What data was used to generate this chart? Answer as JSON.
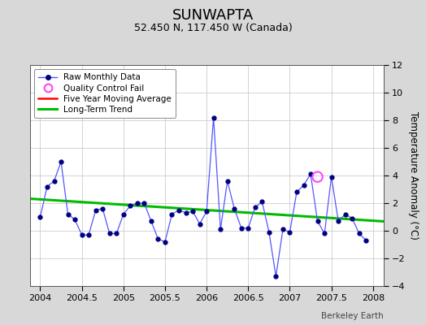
{
  "title": "SUNWAPTA",
  "subtitle": "52.450 N, 117.450 W (Canada)",
  "ylabel": "Temperature Anomaly (°C)",
  "credit": "Berkeley Earth",
  "xlim": [
    2003.875,
    2008.125
  ],
  "ylim": [
    -4,
    12
  ],
  "yticks": [
    -4,
    -2,
    0,
    2,
    4,
    6,
    8,
    10,
    12
  ],
  "xticks": [
    2004,
    2004.5,
    2005,
    2005.5,
    2006,
    2006.5,
    2007,
    2007.5,
    2008
  ],
  "xtick_labels": [
    "2004",
    "2004.5",
    "2005",
    "2005.5",
    "2006",
    "2006.5",
    "2007",
    "2007.5",
    "2008"
  ],
  "raw_x": [
    2004.0,
    2004.083,
    2004.167,
    2004.25,
    2004.333,
    2004.417,
    2004.5,
    2004.583,
    2004.667,
    2004.75,
    2004.833,
    2004.917,
    2005.0,
    2005.083,
    2005.167,
    2005.25,
    2005.333,
    2005.417,
    2005.5,
    2005.583,
    2005.667,
    2005.75,
    2005.833,
    2005.917,
    2006.0,
    2006.083,
    2006.167,
    2006.25,
    2006.333,
    2006.417,
    2006.5,
    2006.583,
    2006.667,
    2006.75,
    2006.833,
    2006.917,
    2007.0,
    2007.083,
    2007.167,
    2007.25,
    2007.333,
    2007.417,
    2007.5,
    2007.583,
    2007.667,
    2007.75,
    2007.833,
    2007.917
  ],
  "raw_y": [
    1.0,
    3.2,
    3.6,
    5.0,
    1.2,
    0.8,
    -0.3,
    -0.3,
    1.5,
    1.6,
    -0.2,
    -0.2,
    1.2,
    1.8,
    2.0,
    2.0,
    0.7,
    -0.6,
    -0.8,
    1.2,
    1.5,
    1.3,
    1.4,
    0.5,
    1.4,
    8.2,
    0.1,
    3.6,
    1.6,
    0.2,
    0.2,
    1.7,
    2.1,
    -0.1,
    -3.3,
    0.1,
    -0.1,
    2.8,
    3.3,
    4.1,
    0.7,
    -0.2,
    3.9,
    0.7,
    1.2,
    0.9,
    -0.2,
    -0.7
  ],
  "qc_fail_x": [
    2007.333
  ],
  "qc_fail_y": [
    3.9
  ],
  "trend_x": [
    2003.875,
    2008.125
  ],
  "trend_y": [
    2.32,
    0.68
  ],
  "raw_line_color": "#5555ff",
  "raw_marker_color": "#000080",
  "moving_avg_color": "#ff0000",
  "trend_color": "#00bb00",
  "qc_color": "#ff44ff",
  "outer_bg_color": "#d8d8d8",
  "plot_bg_color": "#ffffff",
  "legend_bg": "#ffffff",
  "title_fontsize": 13,
  "subtitle_fontsize": 9,
  "tick_fontsize": 8,
  "ylabel_fontsize": 8.5,
  "credit_fontsize": 7.5
}
